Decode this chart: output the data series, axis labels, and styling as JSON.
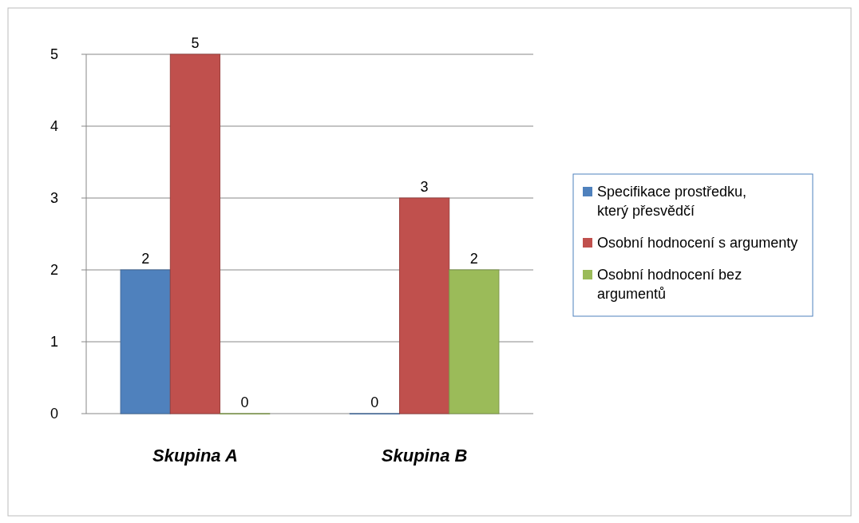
{
  "chart_data": {
    "type": "bar",
    "categories": [
      "Skupina A",
      "Skupina B"
    ],
    "series": [
      {
        "name": "Specifikace prostředku, který přesvědčí",
        "color": "#4f81bd",
        "values": [
          2,
          0
        ]
      },
      {
        "name": "Osobní hodnocení s argumenty",
        "color": "#c0504d",
        "values": [
          5,
          3
        ]
      },
      {
        "name": "Osobní hodnocení bez argumentů",
        "color": "#9bbb59",
        "values": [
          0,
          2
        ]
      }
    ],
    "ylim": [
      0,
      5
    ],
    "yticks": [
      0,
      1,
      2,
      3,
      4,
      5
    ],
    "grid": "y",
    "legend": "right",
    "data_labels": true
  }
}
